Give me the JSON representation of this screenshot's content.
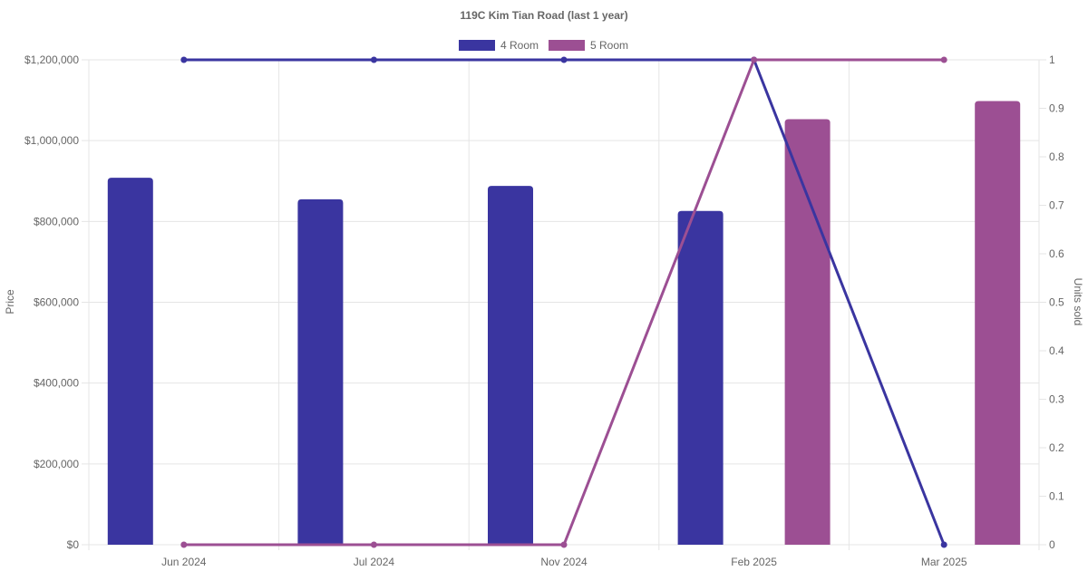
{
  "chart_data": {
    "type": "bar",
    "title": "119C Kim Tian Road (last 1 year)",
    "categories": [
      "Jun 2024",
      "Jul 2024",
      "Nov 2024",
      "Feb 2025",
      "Mar 2025"
    ],
    "xlabel": "",
    "ylabel": "Price",
    "y2label": "Units sold",
    "ylim": [
      0,
      1200000
    ],
    "y2lim": [
      0,
      1
    ],
    "y_ticks": [
      "$0",
      "$200,000",
      "$400,000",
      "$600,000",
      "$800,000",
      "$1,000,000",
      "$1,200,000"
    ],
    "y2_ticks": [
      "0",
      "0.1",
      "0.2",
      "0.3",
      "0.4",
      "0.5",
      "0.6",
      "0.7",
      "0.8",
      "0.9",
      "1"
    ],
    "grid": true,
    "legend_position": "top",
    "series": [
      {
        "name": "4 Room",
        "color": "#3a35a0",
        "price_values": [
          908000,
          855000,
          888000,
          826000,
          null
        ],
        "units_sold": [
          1,
          1,
          1,
          1,
          0
        ]
      },
      {
        "name": "5 Room",
        "color": "#9c4f93",
        "price_values": [
          null,
          null,
          null,
          1053000,
          1098000
        ],
        "units_sold": [
          0,
          0,
          0,
          1,
          1
        ]
      }
    ]
  }
}
